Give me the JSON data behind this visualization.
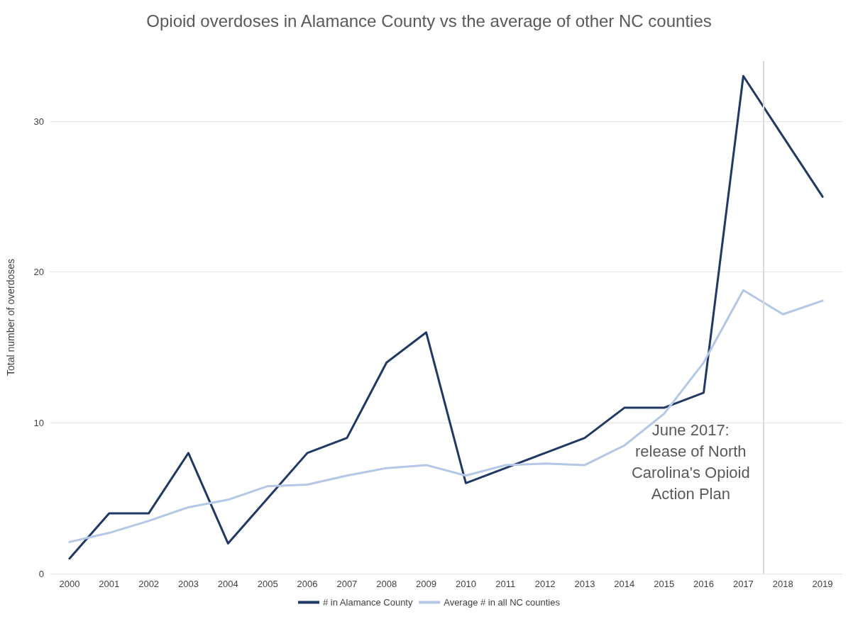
{
  "chart_data": {
    "type": "line",
    "title": "Opioid overdoses in Alamance County vs the average of other NC counties",
    "ylabel": "Total number of overdoses",
    "x": [
      2000,
      2001,
      2002,
      2003,
      2004,
      2005,
      2006,
      2007,
      2008,
      2009,
      2010,
      2011,
      2012,
      2013,
      2014,
      2015,
      2016,
      2017,
      2018,
      2019
    ],
    "xlim": [
      1999.5,
      2019.5
    ],
    "xticks": [
      2000,
      2001,
      2002,
      2003,
      2004,
      2005,
      2006,
      2007,
      2008,
      2009,
      2010,
      2011,
      2012,
      2013,
      2014,
      2015,
      2016,
      2017,
      2018,
      2019
    ],
    "ylim": [
      0,
      34
    ],
    "yticks": [
      0,
      10,
      20,
      30
    ],
    "series": [
      {
        "name": "# in Alamance County",
        "color": "#203864",
        "values": [
          1,
          4,
          4,
          8,
          2,
          5,
          8,
          9,
          14,
          16,
          6,
          7,
          8,
          9,
          11,
          11,
          12,
          33,
          29,
          25
        ]
      },
      {
        "name": "Average # in all NC counties",
        "color": "#b4c7e7",
        "values": [
          2.1,
          2.7,
          3.5,
          4.4,
          4.9,
          5.8,
          5.9,
          6.5,
          7.0,
          7.2,
          6.5,
          7.2,
          7.3,
          7.2,
          8.5,
          10.6,
          14,
          18.8,
          17.2,
          18.1
        ]
      }
    ],
    "ref_lines": [
      {
        "axis": "x",
        "value": 2017.5,
        "label": "June 2017:\nrelease of North\nCarolina's Opioid\nAction Plan",
        "color": "#d9d9d9"
      }
    ],
    "grid": "y",
    "legend": "bottom",
    "marker": "none",
    "line_style": "solid"
  }
}
